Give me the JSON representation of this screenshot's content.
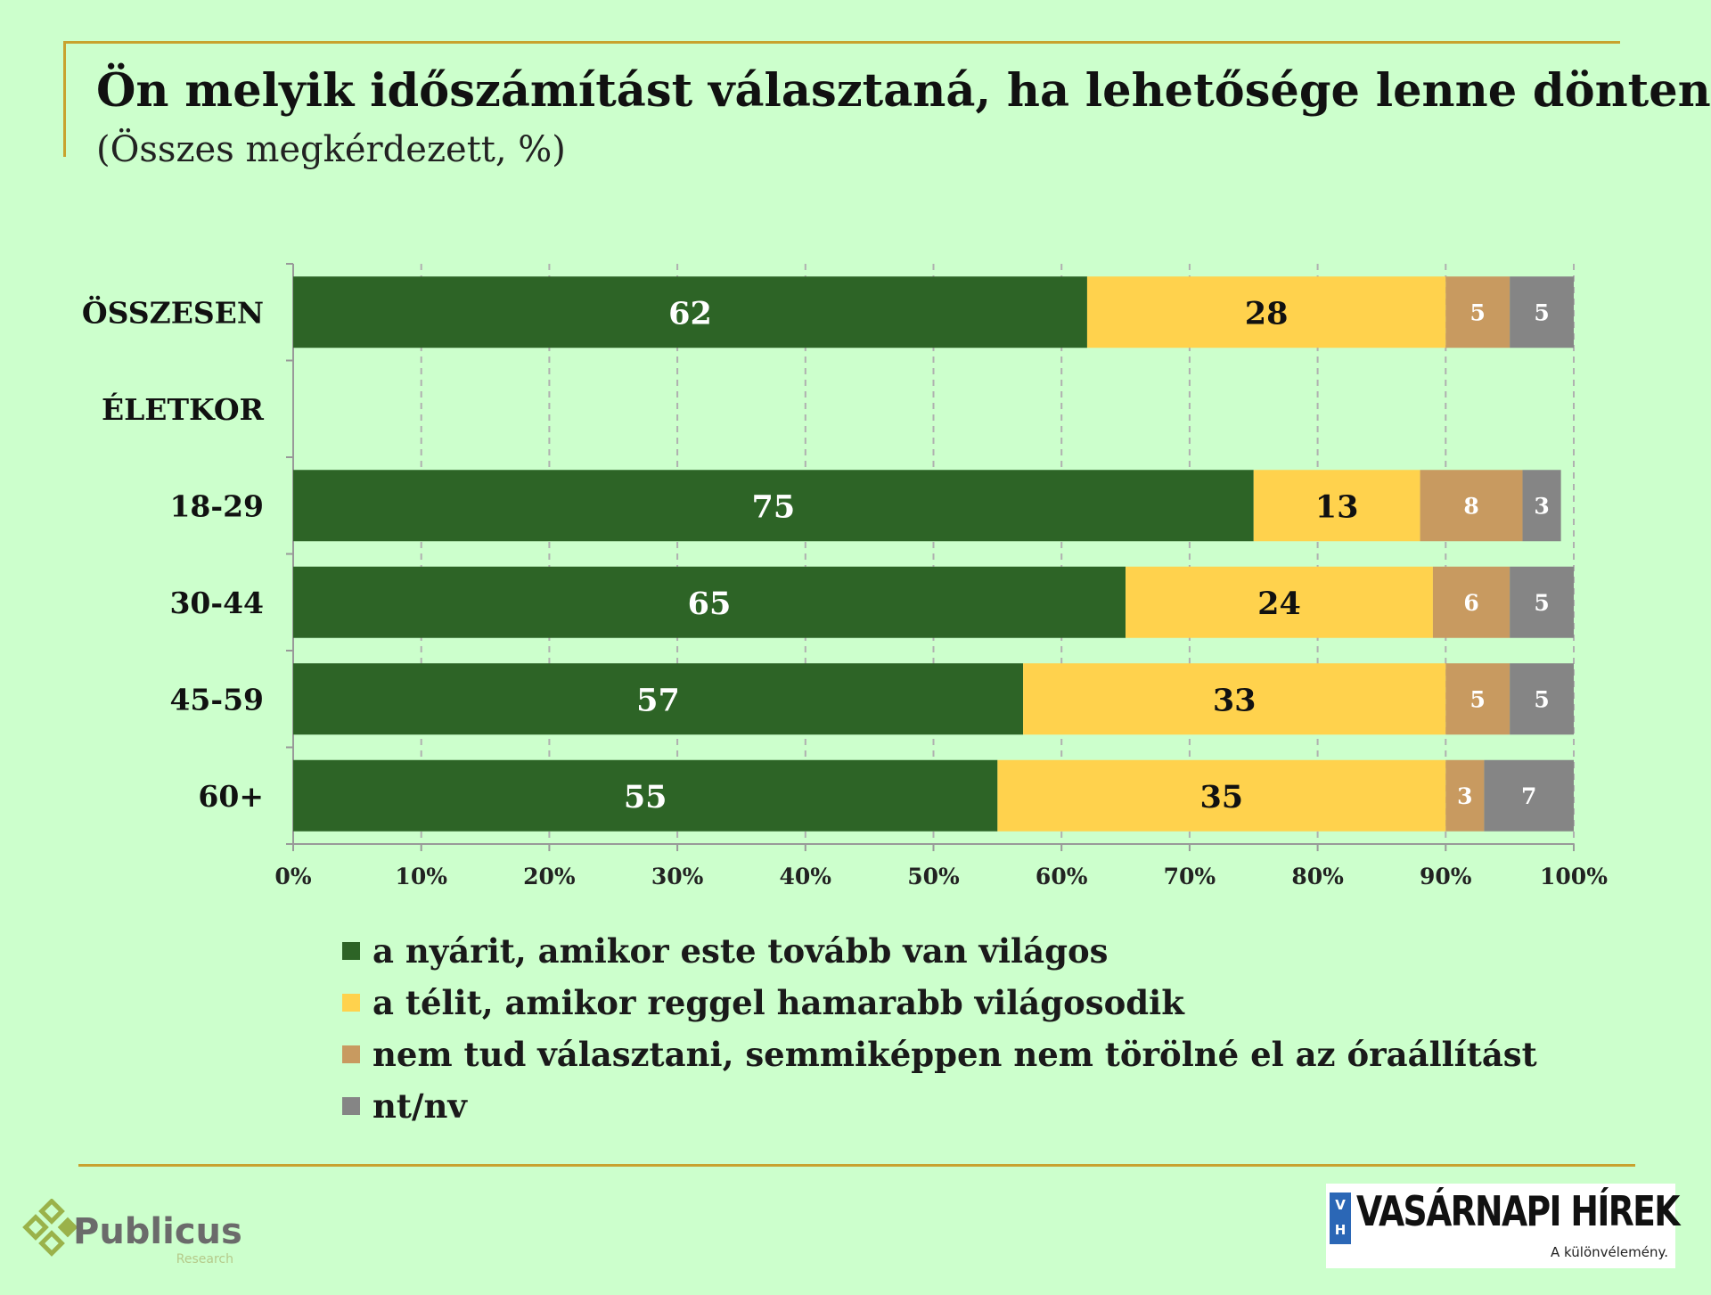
{
  "header": {
    "title": "Ön melyik időszámítást választaná, ha lehetősége lenne dönteni?",
    "subtitle": "(Összes megkérdezett, %)"
  },
  "chart_data": {
    "type": "bar",
    "orientation": "horizontal",
    "stacked": true,
    "categories": [
      "ÖSSZESEN",
      "ÉLETKOR",
      "18-29",
      "30-44",
      "45-59",
      "60+"
    ],
    "series": [
      {
        "name": "a nyárit, amikor este tovább van világos",
        "color": "#2d6426",
        "values": [
          62,
          null,
          75,
          65,
          57,
          55
        ]
      },
      {
        "name": "a télit, amikor reggel hamarabb világosodik",
        "color": "#ffd24d",
        "values": [
          28,
          null,
          13,
          24,
          33,
          35
        ]
      },
      {
        "name": "nem tud választani, semmiképpen nem törölné el az óraállítást",
        "color": "#c89a60",
        "values": [
          5,
          null,
          8,
          6,
          5,
          3
        ]
      },
      {
        "name": "nt/nv",
        "color": "#858585",
        "values": [
          5,
          null,
          3,
          5,
          5,
          7
        ]
      }
    ],
    "x_ticks": [
      "0%",
      "10%",
      "20%",
      "30%",
      "40%",
      "50%",
      "60%",
      "70%",
      "80%",
      "90%",
      "100%"
    ],
    "xlim": [
      0,
      100
    ],
    "grid": "vertical-dashed",
    "legend_position": "bottom"
  },
  "logos": {
    "publicus": "Publicus",
    "publicus_sub": "Research",
    "vh_badge_top": "V",
    "vh_badge_bottom": "H",
    "vh_name": "VASÁRNAPI HÍREK",
    "vh_slogan": "A különvélemény."
  }
}
